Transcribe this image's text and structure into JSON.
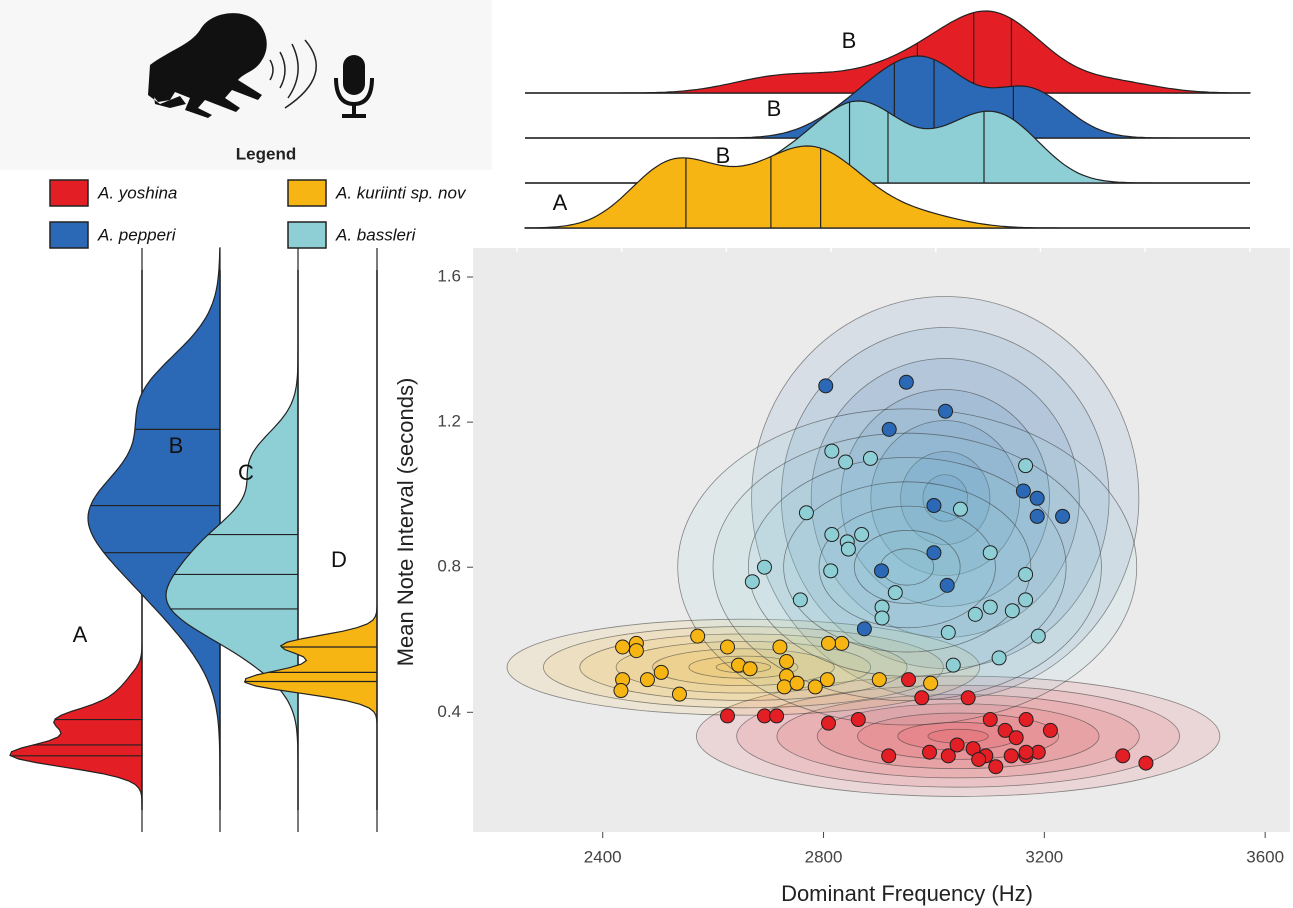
{
  "chart_data": {
    "type": "scatter",
    "legend_title": "Legend",
    "xlabel": "Dominant Frequency (Hz)",
    "ylabel": "Mean Note Interval (seconds)",
    "xlim": [
      2165,
      3645
    ],
    "xticks": [
      2400,
      2800,
      3200,
      3600
    ],
    "ylim": [
      0.07,
      1.68
    ],
    "yticks": [
      0.4,
      0.8,
      1.2,
      1.6
    ],
    "grid": false,
    "series": [
      {
        "name": "A. yoshina",
        "color": "#e31e24",
        "x_group": "B",
        "y_group": "A",
        "x": [
          2626,
          2693,
          2715,
          2809,
          2863,
          2954,
          2978,
          3062,
          2918,
          2992,
          3026,
          3042,
          3071,
          3102,
          3129,
          3167,
          3211,
          3149,
          3094,
          3112,
          3081,
          3140,
          3167,
          3189,
          3167,
          3342,
          3384
        ],
        "values": [
          0.39,
          0.39,
          0.39,
          0.37,
          0.38,
          0.49,
          0.44,
          0.44,
          0.28,
          0.29,
          0.28,
          0.31,
          0.3,
          0.38,
          0.35,
          0.38,
          0.35,
          0.33,
          0.28,
          0.25,
          0.27,
          0.28,
          0.28,
          0.29,
          0.29,
          0.28,
          0.26
        ]
      },
      {
        "name": "A. pepperi",
        "color": "#2b68b5",
        "x_group": "B",
        "y_group": "B",
        "x": [
          2804,
          2950,
          3021,
          2919,
          3162,
          3187,
          3187,
          3233,
          3000,
          3000,
          3024,
          2905,
          2874
        ],
        "values": [
          1.3,
          1.31,
          1.23,
          1.18,
          1.01,
          0.99,
          0.94,
          0.94,
          0.97,
          0.84,
          0.75,
          0.79,
          0.63
        ]
      },
      {
        "name": "A. kuriinti sp. nov",
        "color": "#f6b512",
        "x_group": "A",
        "y_group": "D",
        "x": [
          2436,
          2461,
          2461,
          2572,
          2626,
          2721,
          2833,
          2809,
          2506,
          2481,
          2436,
          2433,
          2539,
          2646,
          2667,
          2733,
          2733,
          2729,
          2752,
          2785,
          2807,
          2901,
          2994
        ],
        "values": [
          0.58,
          0.59,
          0.57,
          0.61,
          0.58,
          0.58,
          0.59,
          0.59,
          0.51,
          0.49,
          0.49,
          0.46,
          0.45,
          0.53,
          0.52,
          0.54,
          0.5,
          0.47,
          0.48,
          0.47,
          0.49,
          0.49,
          0.48
        ]
      },
      {
        "name": "A. bassleri",
        "color": "#8ecfd6",
        "x_group": "B",
        "y_group": "C",
        "x": [
          2815,
          2840,
          2885,
          2769,
          2815,
          2843,
          2845,
          2869,
          2693,
          2671,
          2813,
          2758,
          2930,
          2906,
          2906,
          3048,
          3166,
          3102,
          3166,
          3166,
          3142,
          3102,
          3075,
          3026,
          3189,
          3118,
          3035
        ],
        "values": [
          1.12,
          1.09,
          1.1,
          0.95,
          0.89,
          0.87,
          0.85,
          0.89,
          0.8,
          0.76,
          0.79,
          0.71,
          0.73,
          0.69,
          0.66,
          0.96,
          1.08,
          0.84,
          0.78,
          0.71,
          0.68,
          0.69,
          0.67,
          0.62,
          0.61,
          0.55,
          0.53
        ]
      }
    ]
  }
}
